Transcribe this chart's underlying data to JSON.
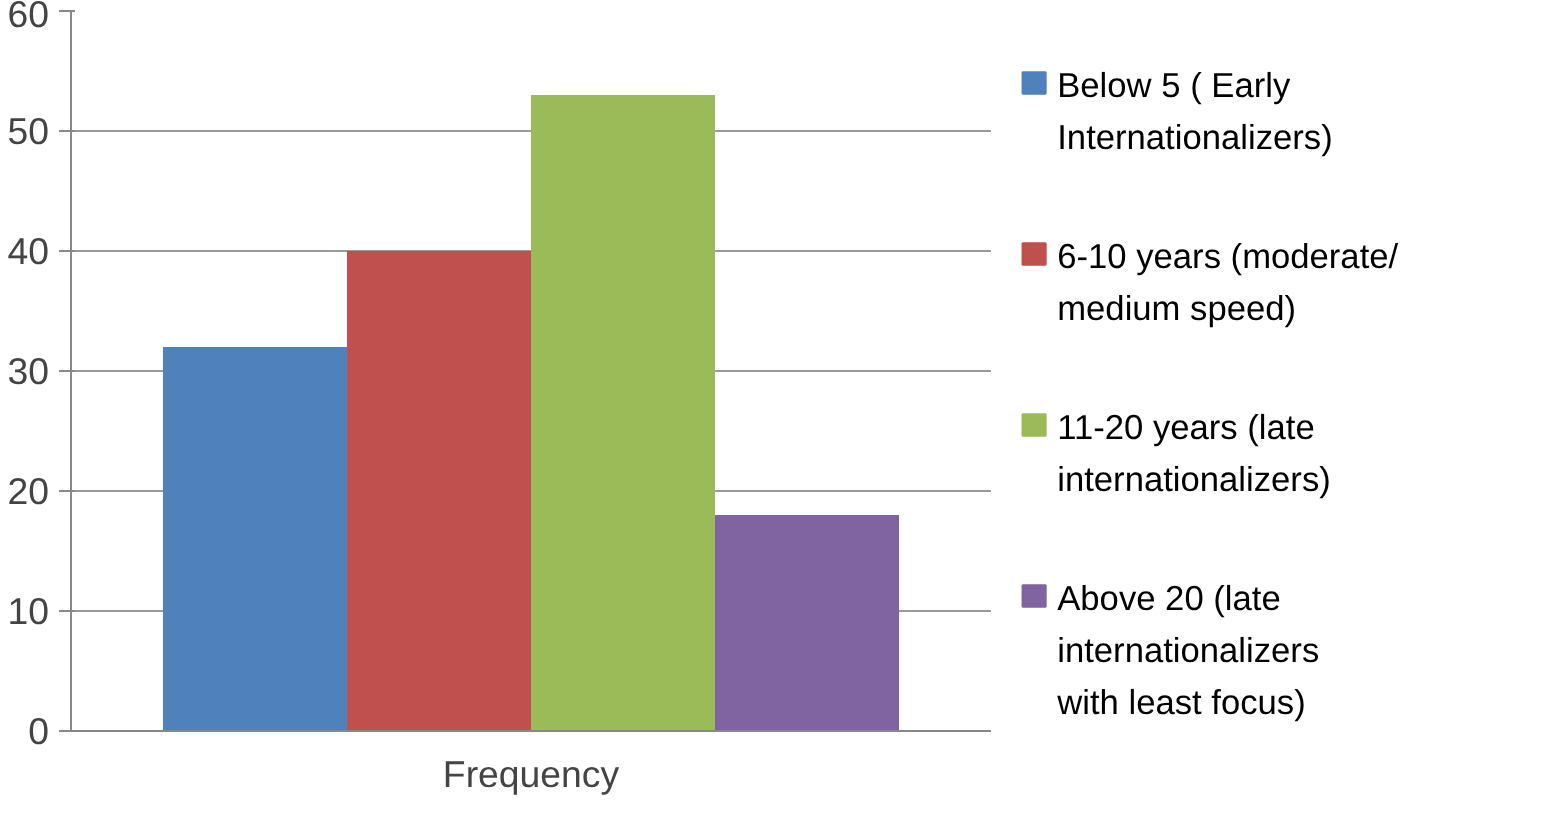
{
  "chart_data": {
    "type": "bar",
    "categories": [
      "Frequency"
    ],
    "series": [
      {
        "name": "Below 5 ( Early Internationalizers)",
        "color": "#4f81bd",
        "values": [
          32
        ]
      },
      {
        "name": "6-10 years (moderate/ medium speed)",
        "color": "#c0504d",
        "values": [
          40
        ]
      },
      {
        "name": "11-20 years (late internationalizers)",
        "color": "#9bbb59",
        "values": [
          53
        ]
      },
      {
        "name": "Above 20 (late internationalizers with least focus)",
        "color": "#8064a2",
        "values": [
          18
        ]
      }
    ],
    "ylim": [
      0,
      60
    ],
    "yticks": [
      0,
      10,
      20,
      30,
      40,
      50,
      60
    ],
    "grid": "y",
    "legend": "right"
  }
}
